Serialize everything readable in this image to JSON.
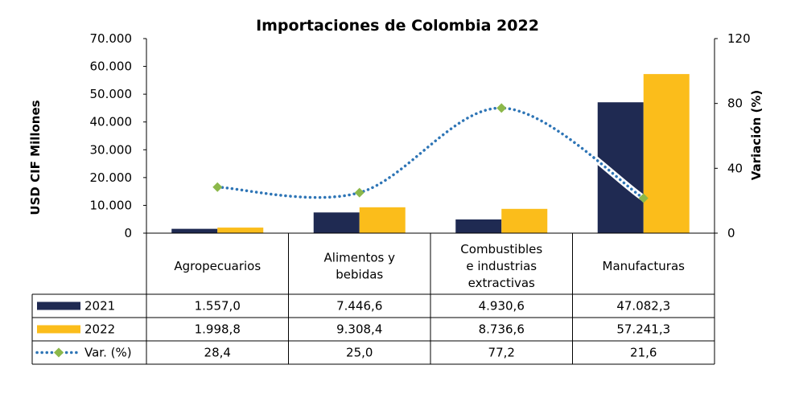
{
  "chart_data": {
    "type": "bar",
    "title": "Importaciones de Colombia 2022",
    "ylabel": "USD CIF Millones",
    "y2label": "Variación (%)",
    "ylim": [
      0,
      70000
    ],
    "y2lim": [
      0,
      120
    ],
    "yticks": [
      "0",
      "10.000",
      "20.000",
      "30.000",
      "40.000",
      "50.000",
      "60.000",
      "70.000"
    ],
    "y2ticks": [
      "0",
      "40",
      "80",
      "120"
    ],
    "categories": [
      "Agropecuarios",
      "Alimentos y bebidas",
      "Combustibles e industrias extractivas",
      "Manufacturas"
    ],
    "category_lines": [
      [
        "Agropecuarios"
      ],
      [
        "Alimentos y",
        "bebidas"
      ],
      [
        "Combustibles",
        "e industrias",
        "extractivas"
      ],
      [
        "Manufacturas"
      ]
    ],
    "series": [
      {
        "name": "2021",
        "kind": "bar",
        "axis": "left",
        "color": "#1f2a52",
        "values": [
          1557.0,
          7446.6,
          4930.6,
          47082.3
        ],
        "labels": [
          "1.557,0",
          "7.446,6",
          "4.930,6",
          "47.082,3"
        ]
      },
      {
        "name": "2022",
        "kind": "bar",
        "axis": "right-none",
        "color": "#fbbd1b",
        "values": [
          1998.8,
          9308.4,
          8736.6,
          57241.3
        ],
        "labels": [
          "1.998,8",
          "9.308,4",
          "8.736,6",
          "57.241,3"
        ]
      },
      {
        "name": "Var. (%)",
        "kind": "line",
        "axis": "right",
        "color": "#2e75b6",
        "marker_color": "#8cb84a",
        "values": [
          28.4,
          25.0,
          77.2,
          21.6
        ],
        "labels": [
          "28,4",
          "25,0",
          "77,2",
          "21,6"
        ]
      }
    ],
    "legend_placement": "data-table",
    "grid": false
  }
}
